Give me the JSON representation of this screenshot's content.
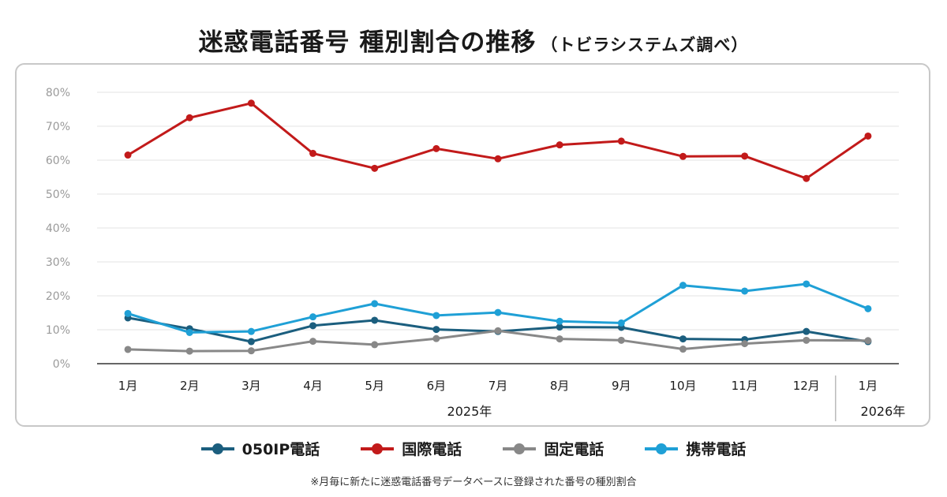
{
  "header": {
    "title": "迷惑電話番号 種別割合の推移",
    "subtitle": "（トビラシステムズ調べ）"
  },
  "footnote": "※月毎に新たに迷惑電話番号データベースに登録された番号の種別割合",
  "chart_data": {
    "type": "line",
    "title": "迷惑電話番号 種別割合の推移（トビラシステムズ調べ）",
    "categories": [
      "1月",
      "2月",
      "3月",
      "4月",
      "5月",
      "6月",
      "7月",
      "8月",
      "9月",
      "10月",
      "11月",
      "12月",
      "1月"
    ],
    "year_labels": [
      "2025年",
      "2026年"
    ],
    "y_ticks": [
      "0%",
      "10%",
      "20%",
      "30%",
      "40%",
      "50%",
      "60%",
      "70%",
      "80%"
    ],
    "ylim": [
      0,
      80
    ],
    "grid": true,
    "legend_position": "bottom",
    "series": [
      {
        "name": "050IP電話",
        "color": "#1b5e7e",
        "values": [
          13.5,
          10.3,
          6.5,
          11.2,
          12.8,
          10.1,
          9.5,
          10.8,
          10.7,
          7.3,
          7.1,
          9.5,
          6.5
        ]
      },
      {
        "name": "国際電話",
        "color": "#c21a1a",
        "values": [
          61.5,
          72.5,
          76.8,
          62.0,
          57.6,
          63.4,
          60.4,
          64.5,
          65.6,
          61.1,
          61.2,
          54.6,
          67.1
        ]
      },
      {
        "name": "固定電話",
        "color": "#888888",
        "values": [
          4.2,
          3.7,
          3.8,
          6.6,
          5.6,
          7.4,
          9.7,
          7.3,
          6.9,
          4.3,
          5.9,
          6.9,
          6.8
        ]
      },
      {
        "name": "携帯電話",
        "color": "#1fa0d6",
        "values": [
          14.8,
          9.2,
          9.5,
          13.8,
          17.7,
          14.2,
          15.1,
          12.5,
          12.0,
          23.1,
          21.4,
          23.5,
          16.2
        ]
      }
    ]
  }
}
